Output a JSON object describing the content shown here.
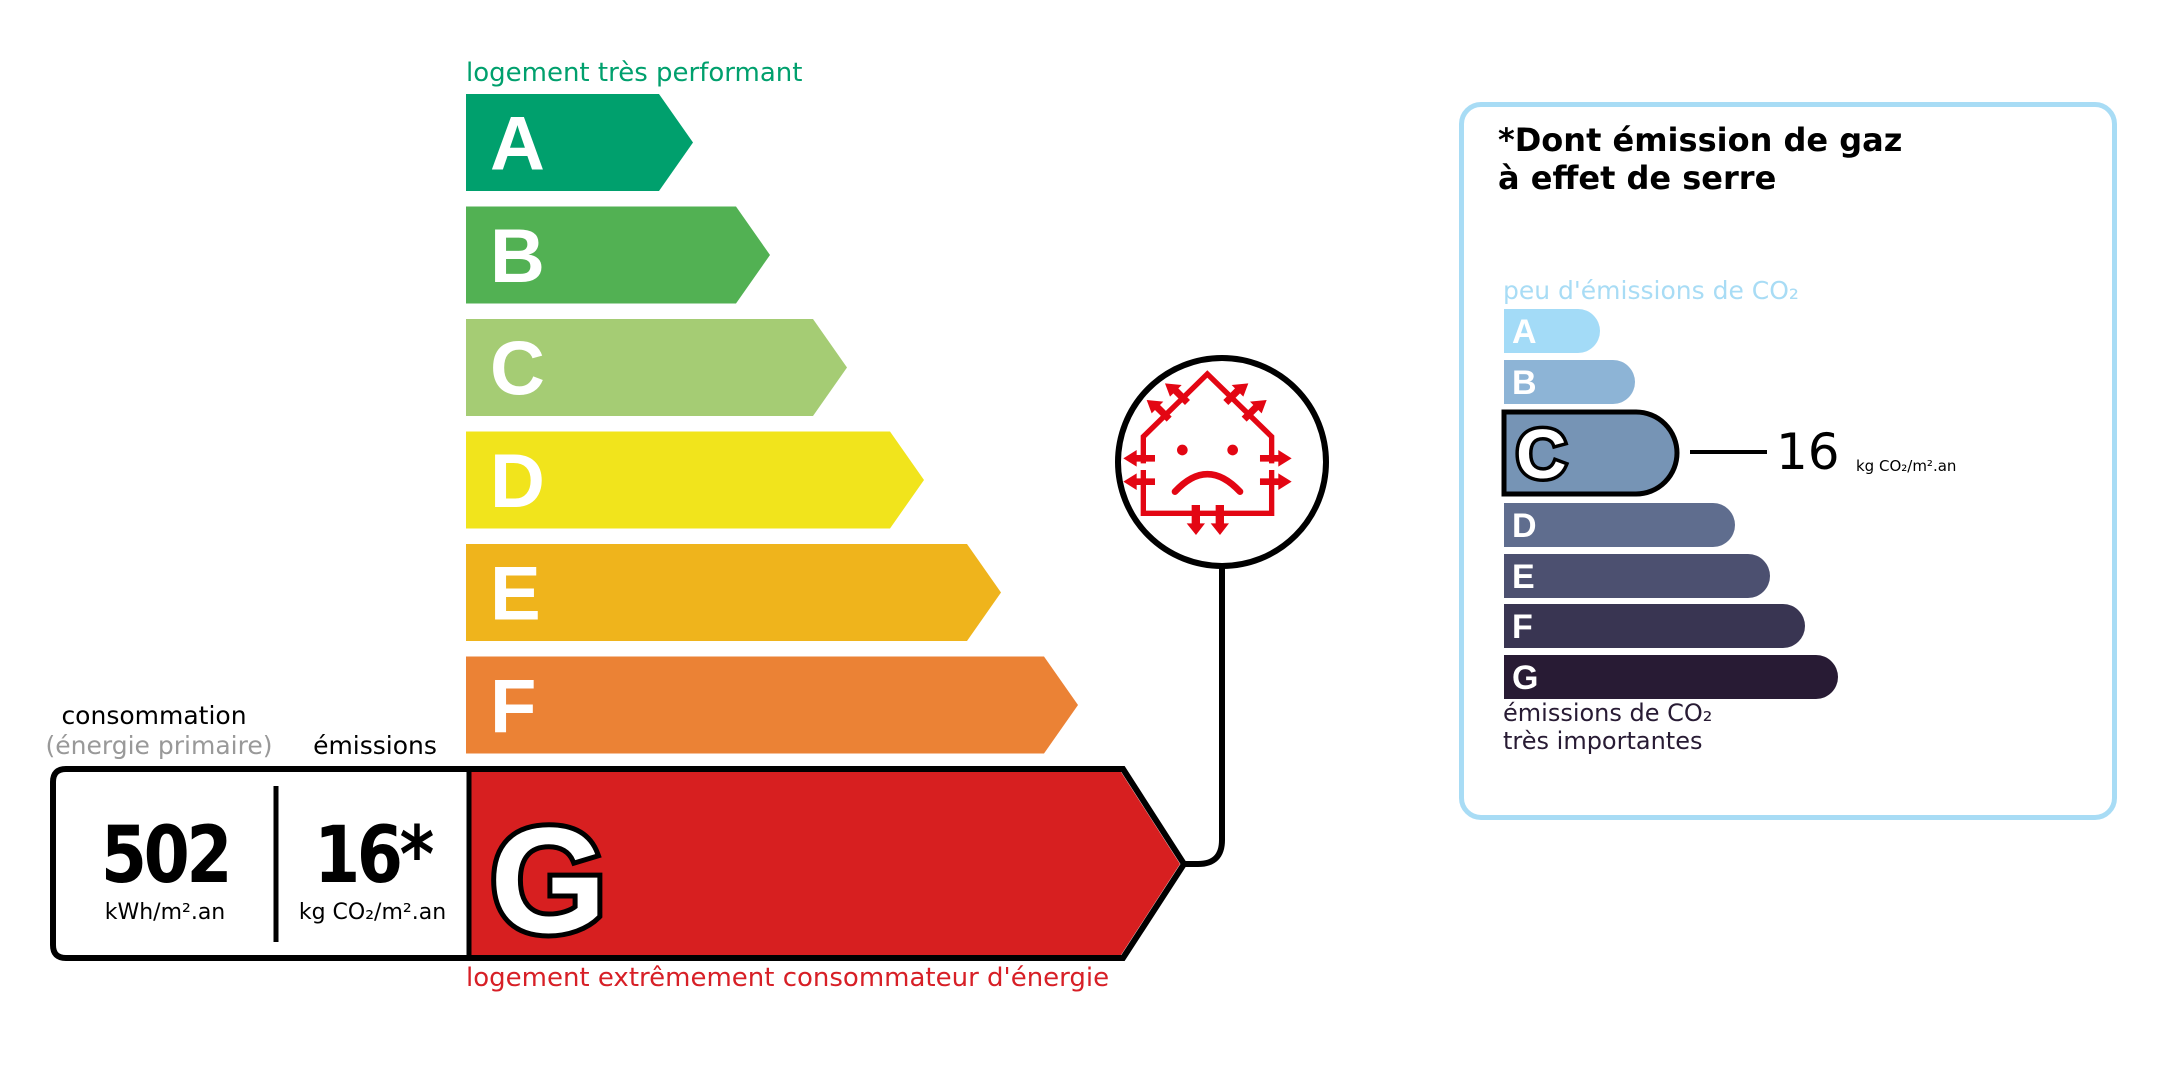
{
  "energy_label": {
    "top_caption": "logement très performant",
    "bottom_caption": "logement extrêmement consommateur d'énergie",
    "classes": [
      {
        "letter": "A",
        "color": "#00a06d"
      },
      {
        "letter": "B",
        "color": "#52b153"
      },
      {
        "letter": "C",
        "color": "#a5cc74"
      },
      {
        "letter": "D",
        "color": "#f1e41c"
      },
      {
        "letter": "E",
        "color": "#efb41c"
      },
      {
        "letter": "F",
        "color": "#eb8235"
      },
      {
        "letter": "G",
        "color": "#d71f20"
      }
    ],
    "current_class": "G",
    "consumption_header": "consommation",
    "consumption_subheader": "(énergie primaire)",
    "emissions_header": "émissions",
    "consumption_value": "502",
    "consumption_unit": "kWh/m².an",
    "emissions_value": "16*",
    "emissions_unit": "kg CO₂/m².an",
    "icon": "house-heat-loss-sad-face-icon"
  },
  "ges_panel": {
    "title_line1": "*Dont émission de gaz",
    "title_line2": "à effet de serre",
    "top_caption": "peu d'émissions de CO₂",
    "bottom_caption_line1": "émissions de CO₂",
    "bottom_caption_line2": "très importantes",
    "classes": [
      {
        "letter": "A",
        "color": "#a3dbf7"
      },
      {
        "letter": "B",
        "color": "#8db4d6"
      },
      {
        "letter": "C",
        "color": "#7694b5"
      },
      {
        "letter": "D",
        "color": "#5f6d8e"
      },
      {
        "letter": "E",
        "color": "#4c5070"
      },
      {
        "letter": "F",
        "color": "#393552"
      },
      {
        "letter": "G",
        "color": "#281b34"
      }
    ],
    "current_class": "C",
    "value": "16",
    "unit": "kg CO₂/m².an",
    "border_color": "#a8dcf5"
  }
}
